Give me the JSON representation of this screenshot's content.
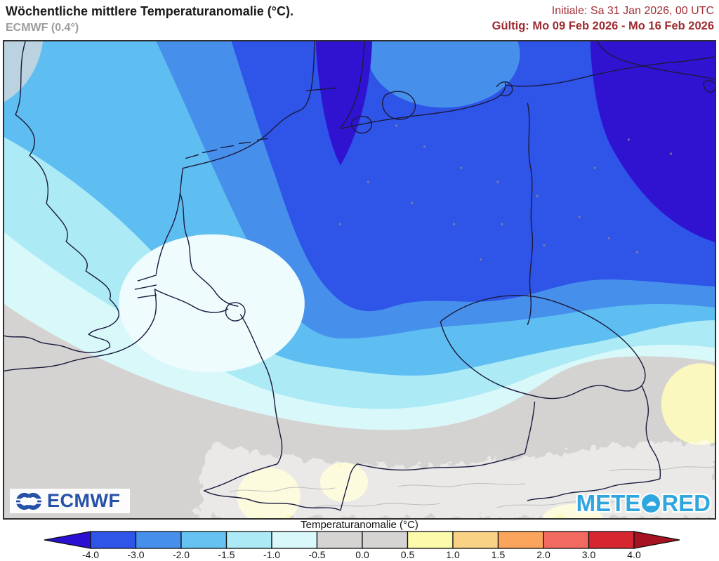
{
  "header": {
    "title": "Wöchentliche mittlere Temperaturanomalie (°C).",
    "subtitle": "ECMWF (0.4°)",
    "init_label": "Initiale: Sa 31 Jan 2026, 00 UTC",
    "valid_label": "Gültig: Mo 09 Feb 2026 - Mo 16 Feb 2026",
    "accent_color": "#9D2B31"
  },
  "map": {
    "ecmwf_label": "ECMWF",
    "meteored": {
      "left": "METE",
      "right": "RED",
      "icon": "cloud"
    }
  },
  "legend": {
    "title": "Temperaturanomalie (°C)"
  },
  "chart_data": {
    "type": "heatmap",
    "title": "Wöchentliche mittlere Temperaturanomalie (°C).",
    "model": "ECMWF (0.4°)",
    "init_time": "Sa 31 Jan 2026, 00 UTC",
    "valid_period": "Mo 09 Feb 2026 - Mo 16 Feb 2026",
    "region": "Central Europe (SE England, Benelux, Germany, Denmark, S Sweden, Poland, Czechia, Austria, Switzerland)",
    "legend_title": "Temperaturanomalie (°C)",
    "scale": {
      "tick_labels": [
        "-4.0",
        "-3.0",
        "-2.0",
        "-1.5",
        "-1.0",
        "-0.5",
        "0.0",
        "0.5",
        "1.0",
        "1.5",
        "2.0",
        "3.0",
        "4.0"
      ],
      "segment_colors": [
        "#2E54E8",
        "#4690EC",
        "#66C2F1",
        "#ACEBF6",
        "#D9F8FA",
        "#D5D4D3",
        "#D5D4D3",
        "#FCFAAB",
        "#F9D286",
        "#FBA55C",
        "#F26A5F",
        "#D62630"
      ],
      "below_min_color": "#2A10D0",
      "above_max_color": "#A6121F",
      "grid": false,
      "legend_position": "bottom"
    },
    "pattern": [
      {
        "area": "Southern Baltic Sea, southern Sweden, far northeast corner",
        "anomaly_c": "below -4"
      },
      {
        "area": "Western Denmark tongue (North Sea coast)",
        "anomaly_c": "below -4"
      },
      {
        "area": "Northern Germany, Denmark, Baltic coast, Poland",
        "anomaly_c": "-4 to -3"
      },
      {
        "area": "Netherlands, NW/central Germany belt",
        "anomaly_c": "-3 to -2"
      },
      {
        "area": "Belgium, central Germany, northern Czechia band",
        "anomaly_c": "-2 to -1.5"
      },
      {
        "area": "SE England, northern France, Franconia, Bohemia",
        "anomaly_c": "-1.5 to -1"
      },
      {
        "area": "English Channel, Lorraine, southern Germany fringe",
        "anomaly_c": "-1 to -0.5"
      },
      {
        "area": "Southern France, Alps, Switzerland, Austria, Hungary",
        "anomaly_c": "-0.5 to 0"
      },
      {
        "area": "Local alpine spots (Valais, Tyrol), eastern edge spots",
        "anomaly_c": "+0.5 to +1"
      }
    ]
  }
}
